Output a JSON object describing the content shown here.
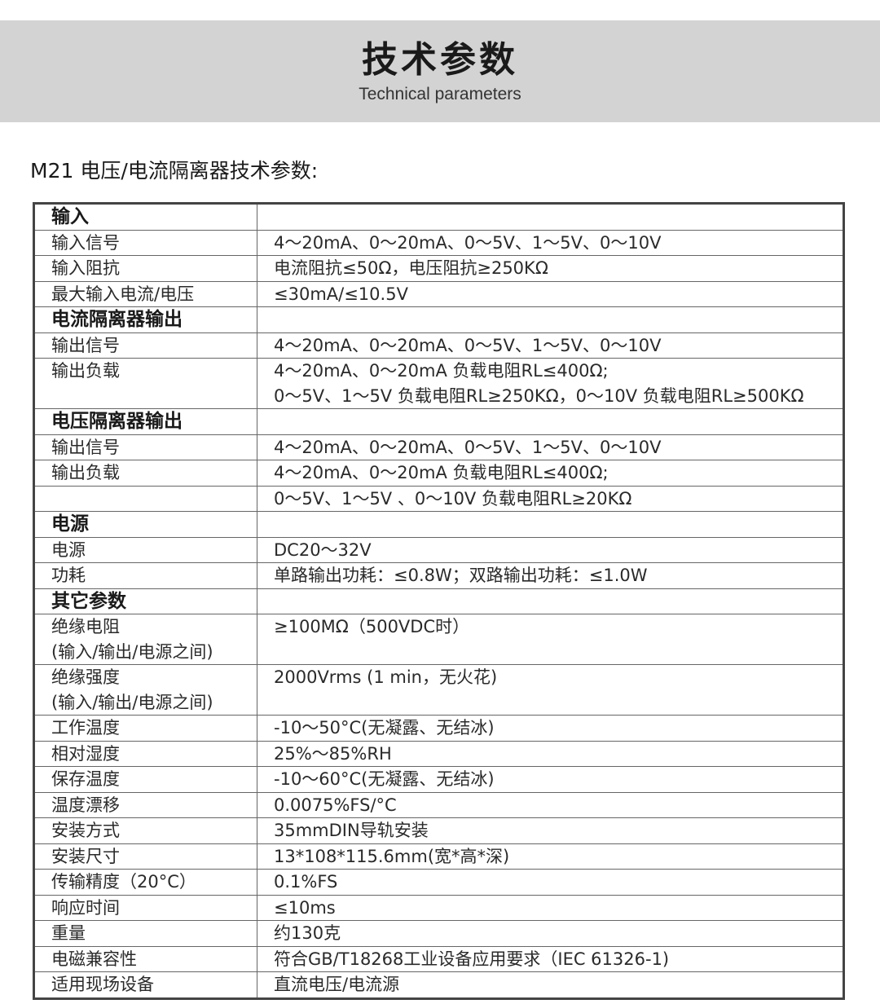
{
  "banner": {
    "title": "技术参数",
    "subtitle": "Technical parameters"
  },
  "heading": "M21 电压/电流隔离器技术参数:",
  "rows": [
    {
      "section": true,
      "label": [
        "输入"
      ],
      "value": [
        ""
      ]
    },
    {
      "label": [
        "输入信号"
      ],
      "value": [
        "4～20mA、0～20mA、0～5V、1～5V、0～10V"
      ]
    },
    {
      "label": [
        "输入阻抗"
      ],
      "value": [
        "电流阻抗≤50Ω，电压阻抗≥250KΩ"
      ]
    },
    {
      "label": [
        "最大输入电流/电压"
      ],
      "value": [
        "≤30mA/≤10.5V"
      ]
    },
    {
      "section": true,
      "label": [
        "电流隔离器输出"
      ],
      "value": [
        ""
      ]
    },
    {
      "label": [
        "输出信号"
      ],
      "value": [
        "4～20mA、0～20mA、0～5V、1～5V、0～10V"
      ]
    },
    {
      "label": [
        "输出负载"
      ],
      "value": [
        "4～20mA、0～20mA 负载电阻RL≤400Ω;",
        "0～5V、1～5V 负载电阻RL≥250KΩ，0～10V 负载电阻RL≥500KΩ"
      ]
    },
    {
      "section": true,
      "label": [
        "电压隔离器输出"
      ],
      "value": [
        ""
      ]
    },
    {
      "label": [
        "输出信号"
      ],
      "value": [
        "4～20mA、0～20mA、0～5V、1～5V、0～10V"
      ]
    },
    {
      "label": [
        "输出负载"
      ],
      "value": [
        "4～20mA、0～20mA 负载电阻RL≤400Ω;"
      ]
    },
    {
      "label": [
        ""
      ],
      "value": [
        "0～5V、1～5V 、0～10V 负载电阻RL≥20KΩ"
      ]
    },
    {
      "section": true,
      "label": [
        "电源"
      ],
      "value": [
        ""
      ]
    },
    {
      "label": [
        "电源"
      ],
      "value": [
        "DC20～32V"
      ]
    },
    {
      "label": [
        "功耗"
      ],
      "value": [
        "单路输出功耗：≤0.8W；双路输出功耗：≤1.0W"
      ]
    },
    {
      "section": true,
      "label": [
        "其它参数"
      ],
      "value": [
        ""
      ]
    },
    {
      "label": [
        "绝缘电阻",
        "(输入/输出/电源之间)"
      ],
      "value": [
        "≥100MΩ（500VDC时）"
      ]
    },
    {
      "label": [
        "绝缘强度",
        "(输入/输出/电源之间)"
      ],
      "value": [
        "2000Vrms (1 min，无火花)"
      ]
    },
    {
      "label": [
        "工作温度"
      ],
      "value": [
        "-10～50°C(无凝露、无结冰)"
      ]
    },
    {
      "label": [
        "相对湿度"
      ],
      "value": [
        "25%～85%RH"
      ]
    },
    {
      "label": [
        "保存温度"
      ],
      "value": [
        "-10～60°C(无凝露、无结冰)"
      ]
    },
    {
      "label": [
        "温度漂移"
      ],
      "value": [
        "0.0075%FS/°C"
      ]
    },
    {
      "label": [
        "安装方式"
      ],
      "value": [
        "35mmDIN导轨安装"
      ]
    },
    {
      "label": [
        "安装尺寸"
      ],
      "value": [
        "13*108*115.6mm(宽*高*深)"
      ]
    },
    {
      "label": [
        "传输精度（20°C）"
      ],
      "value": [
        "0.1%FS"
      ]
    },
    {
      "label": [
        "响应时间"
      ],
      "value": [
        "≤10ms"
      ]
    },
    {
      "label": [
        "重量"
      ],
      "value": [
        "约130克"
      ]
    },
    {
      "label": [
        "电磁兼容性"
      ],
      "value": [
        "符合GB/T18268工业设备应用要求（IEC 61326-1)"
      ]
    },
    {
      "label": [
        "适用现场设备"
      ],
      "value": [
        "直流电压/电流源"
      ]
    }
  ]
}
